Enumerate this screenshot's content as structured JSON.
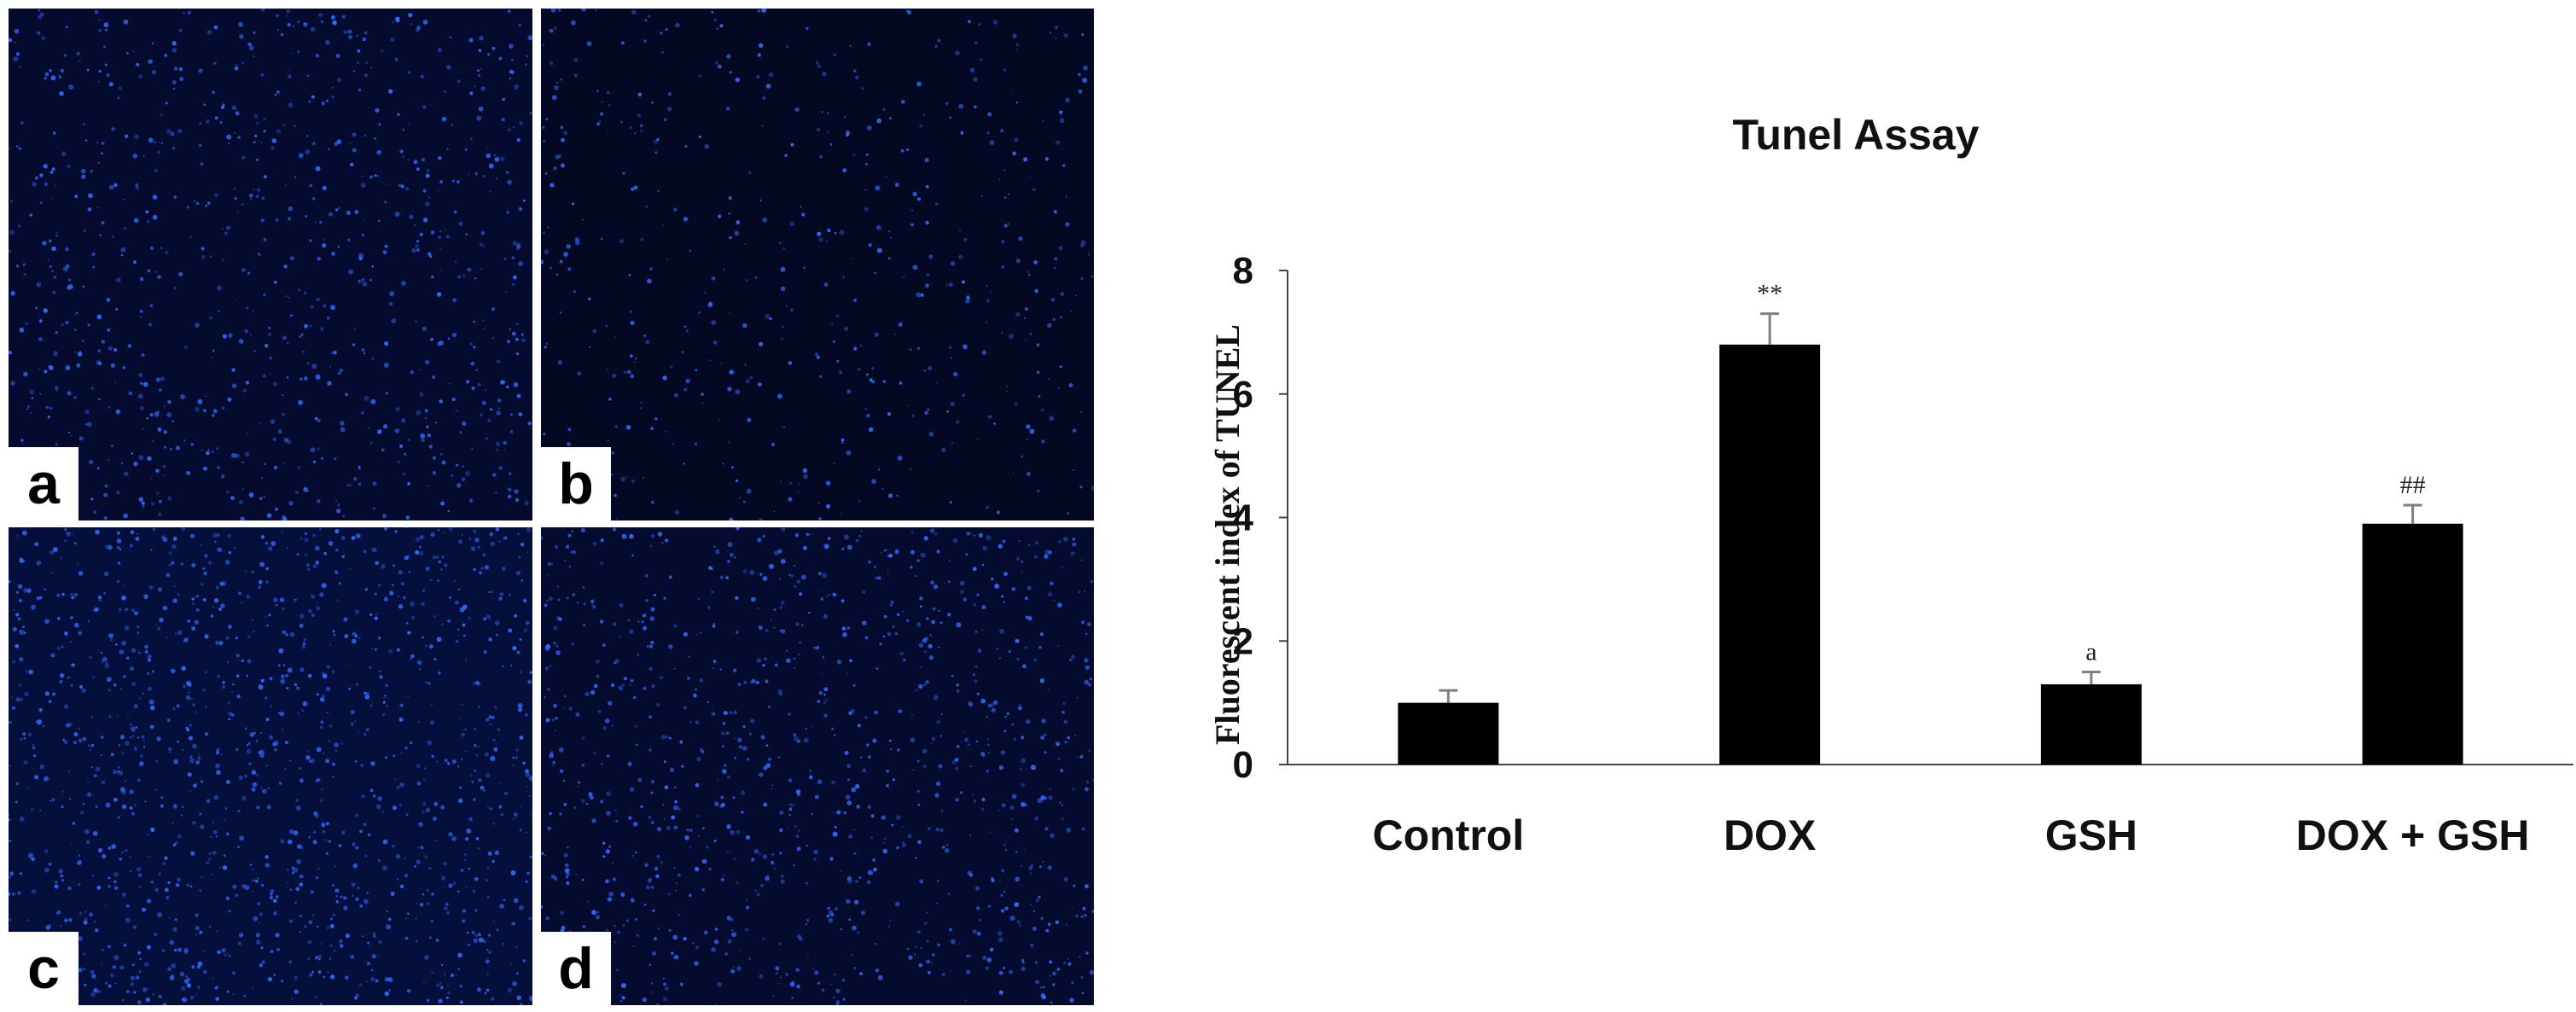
{
  "panels": [
    {
      "label": "a"
    },
    {
      "label": "b"
    },
    {
      "label": "c"
    },
    {
      "label": "d"
    }
  ],
  "colors": {
    "tissue_background": "#02030f",
    "nucleus_stain": "#2f6bff",
    "bar_fill": "#000000",
    "error_bar": "#7f7f7f"
  },
  "chart_data": {
    "type": "bar",
    "title": "Tunel Assay",
    "xlabel": "",
    "ylabel": "Fluorescent index of TUNEL",
    "ylim": [
      0,
      8
    ],
    "yticks": [
      0,
      2,
      4,
      6,
      8
    ],
    "grid": false,
    "categories": [
      "Control",
      "DOX",
      "GSH",
      "DOX + GSH"
    ],
    "values": [
      1.0,
      6.8,
      1.3,
      3.9
    ],
    "errors": [
      0.2,
      0.5,
      0.2,
      0.3
    ],
    "annotations": [
      "",
      "**",
      "a",
      "##"
    ]
  }
}
